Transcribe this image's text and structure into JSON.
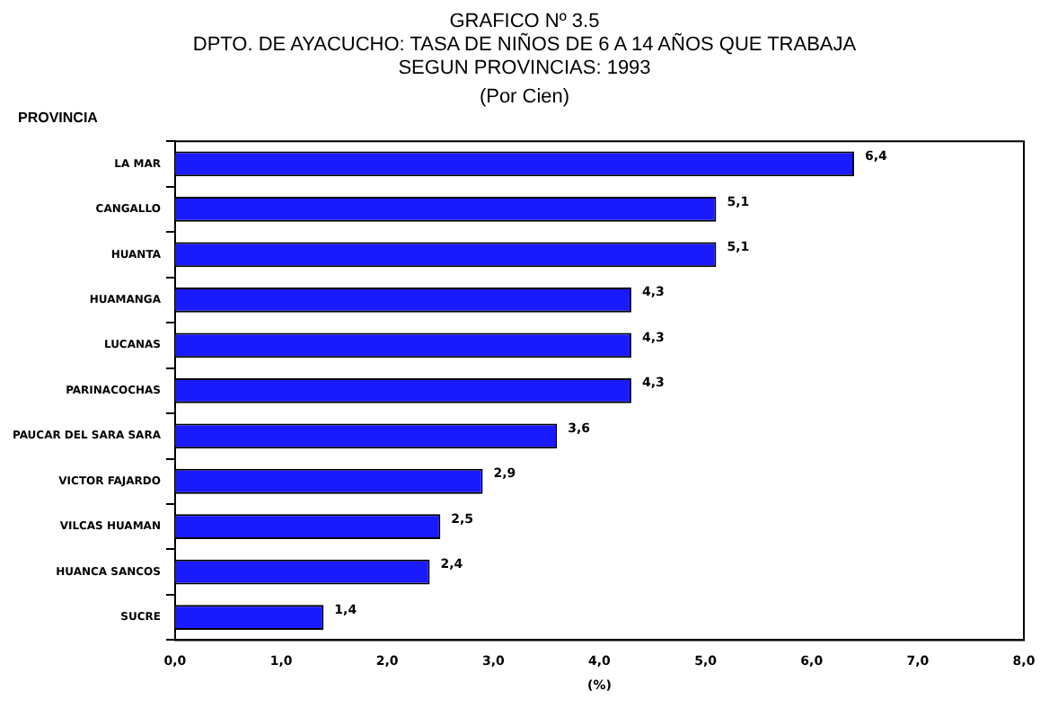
{
  "chart_data": {
    "type": "bar",
    "orientation": "horizontal",
    "title": "GRAFICO Nº 3.5\nDPTO. DE AYACUCHO: TASA DE NIÑOS DE 6 A 14 AÑOS QUE TRABAJA\nSEGUN PROVINCIAS: 1993",
    "subtitle": "(Por Cien)",
    "ylabel": "PROVINCIA",
    "xlabel": "(%)",
    "categories": [
      "LA MAR",
      "CANGALLO",
      "HUANTA",
      "HUAMANGA",
      "LUCANAS",
      "PARINACOCHAS",
      "PAUCAR DEL SARA SARA",
      "VICTOR FAJARDO",
      "VILCAS HUAMAN",
      "HUANCA SANCOS",
      "SUCRE"
    ],
    "values": [
      6.4,
      5.1,
      5.1,
      4.3,
      4.3,
      4.3,
      3.6,
      2.9,
      2.5,
      2.4,
      1.4
    ],
    "value_labels": [
      "6,4",
      "5,1",
      "5,1",
      "4,3",
      "4,3",
      "4,3",
      "3,6",
      "2,9",
      "2,5",
      "2,4",
      "1,4"
    ],
    "color": "#1a1aff",
    "xlim": [
      0,
      8
    ],
    "xticks": [
      {
        "value": 0,
        "label": "0,0"
      },
      {
        "value": 1,
        "label": "1,0"
      },
      {
        "value": 2,
        "label": "2,0"
      },
      {
        "value": 3,
        "label": "3,0"
      },
      {
        "value": 4,
        "label": "4,0"
      },
      {
        "value": 5,
        "label": "5,0"
      },
      {
        "value": 6,
        "label": "6,0"
      },
      {
        "value": 7,
        "label": "7,0"
      },
      {
        "value": 8,
        "label": "8,0"
      }
    ],
    "grid": false,
    "legend": false
  }
}
